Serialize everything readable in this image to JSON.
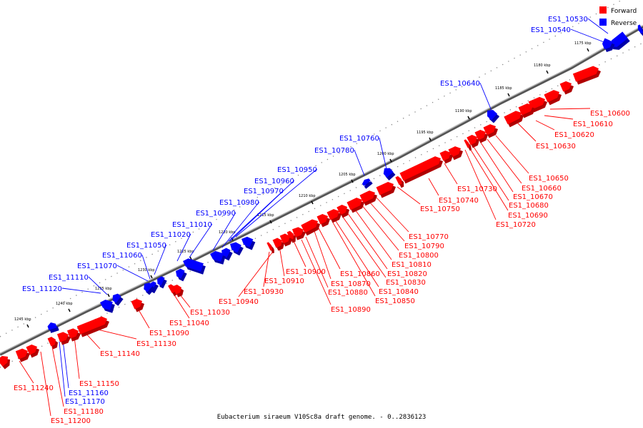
{
  "title": "Eubacterium siraeum V10Sc8a draft genome. - 0..2836123",
  "colors": {
    "forward": "#ff0000",
    "reverse": "#0000ff",
    "backbone": "#888888"
  },
  "legend": [
    {
      "label": "Forward",
      "color": "#ff0000"
    },
    {
      "label": "Reverse",
      "color": "#0000ff"
    }
  ],
  "ticks": [
    "1175 kbp",
    "1180 kbp",
    "1185 kbp",
    "1190 kbp",
    "1195 kbp",
    "1200 kbp",
    "1205 kbp",
    "1210 kbp",
    "1215 kbp",
    "1220 kbp",
    "1225 kbp",
    "1230 kbp",
    "1235 kbp",
    "1240 kbp",
    "1245 kbp"
  ],
  "genes": [
    {
      "id": "ES1_10530",
      "strand": "reverse"
    },
    {
      "id": "ES1_10540",
      "strand": "reverse"
    },
    {
      "id": "ES1_10600",
      "strand": "forward"
    },
    {
      "id": "ES1_10610",
      "strand": "forward"
    },
    {
      "id": "ES1_10620",
      "strand": "forward"
    },
    {
      "id": "ES1_10630",
      "strand": "forward"
    },
    {
      "id": "ES1_10640",
      "strand": "reverse"
    },
    {
      "id": "ES1_10650",
      "strand": "forward"
    },
    {
      "id": "ES1_10660",
      "strand": "forward"
    },
    {
      "id": "ES1_10670",
      "strand": "forward"
    },
    {
      "id": "ES1_10680",
      "strand": "forward"
    },
    {
      "id": "ES1_10690",
      "strand": "forward"
    },
    {
      "id": "ES1_10720",
      "strand": "forward"
    },
    {
      "id": "ES1_10730",
      "strand": "forward"
    },
    {
      "id": "ES1_10740",
      "strand": "forward"
    },
    {
      "id": "ES1_10750",
      "strand": "forward"
    },
    {
      "id": "ES1_10760",
      "strand": "reverse"
    },
    {
      "id": "ES1_10770",
      "strand": "forward"
    },
    {
      "id": "ES1_10780",
      "strand": "reverse"
    },
    {
      "id": "ES1_10790",
      "strand": "forward"
    },
    {
      "id": "ES1_10800",
      "strand": "forward"
    },
    {
      "id": "ES1_10810",
      "strand": "forward"
    },
    {
      "id": "ES1_10820",
      "strand": "forward"
    },
    {
      "id": "ES1_10830",
      "strand": "forward"
    },
    {
      "id": "ES1_10840",
      "strand": "forward"
    },
    {
      "id": "ES1_10850",
      "strand": "forward"
    },
    {
      "id": "ES1_10860",
      "strand": "forward"
    },
    {
      "id": "ES1_10870",
      "strand": "forward"
    },
    {
      "id": "ES1_10880",
      "strand": "forward"
    },
    {
      "id": "ES1_10890",
      "strand": "forward"
    },
    {
      "id": "ES1_10900",
      "strand": "forward"
    },
    {
      "id": "ES1_10910",
      "strand": "forward"
    },
    {
      "id": "ES1_10930",
      "strand": "forward"
    },
    {
      "id": "ES1_10940",
      "strand": "forward"
    },
    {
      "id": "ES1_10950",
      "strand": "reverse"
    },
    {
      "id": "ES1_10960",
      "strand": "reverse"
    },
    {
      "id": "ES1_10970",
      "strand": "reverse"
    },
    {
      "id": "ES1_10980",
      "strand": "reverse"
    },
    {
      "id": "ES1_10990",
      "strand": "reverse"
    },
    {
      "id": "ES1_11010",
      "strand": "reverse"
    },
    {
      "id": "ES1_11020",
      "strand": "reverse"
    },
    {
      "id": "ES1_11030",
      "strand": "forward"
    },
    {
      "id": "ES1_11040",
      "strand": "forward"
    },
    {
      "id": "ES1_11050",
      "strand": "reverse"
    },
    {
      "id": "ES1_11060",
      "strand": "reverse"
    },
    {
      "id": "ES1_11070",
      "strand": "reverse"
    },
    {
      "id": "ES1_11090",
      "strand": "forward"
    },
    {
      "id": "ES1_11110",
      "strand": "reverse"
    },
    {
      "id": "ES1_11120",
      "strand": "reverse"
    },
    {
      "id": "ES1_11130",
      "strand": "forward"
    },
    {
      "id": "ES1_11140",
      "strand": "forward"
    },
    {
      "id": "ES1_11150",
      "strand": "forward"
    },
    {
      "id": "ES1_11160",
      "strand": "reverse"
    },
    {
      "id": "ES1_11170",
      "strand": "reverse"
    },
    {
      "id": "ES1_11180",
      "strand": "forward"
    },
    {
      "id": "ES1_11200",
      "strand": "forward"
    },
    {
      "id": "ES1_11240",
      "strand": "forward"
    }
  ]
}
